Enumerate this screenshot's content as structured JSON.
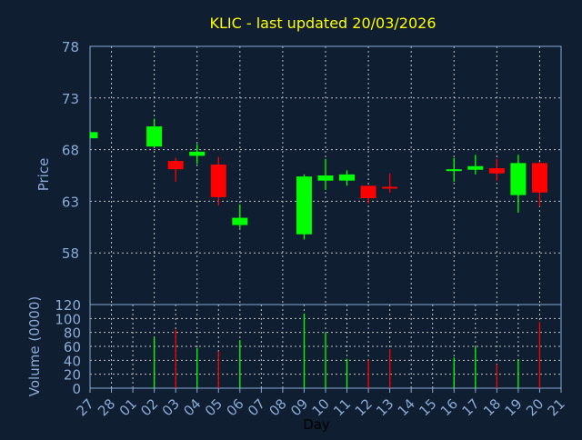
{
  "chart_data": [
    {
      "type": "candlestick",
      "title": "KLIC - last updated 20/03/2026",
      "ylabel": "Price",
      "ylim": [
        53,
        78
      ],
      "yticks": [
        78,
        73,
        68,
        63,
        58
      ],
      "grid": true,
      "categories": [
        "27",
        "28",
        "01",
        "02",
        "03",
        "04",
        "05",
        "06",
        "07",
        "08",
        "09",
        "10",
        "11",
        "12",
        "13",
        "14",
        "15",
        "16",
        "17",
        "18",
        "19",
        "20",
        "21"
      ],
      "candles": [
        {
          "day": "27",
          "open": 69.1,
          "high": 69.7,
          "low": 69.1,
          "close": 69.7
        },
        {
          "day": "02",
          "open": 68.3,
          "high": 71.0,
          "low": 68.3,
          "close": 70.25
        },
        {
          "day": "03",
          "open": 66.9,
          "high": 67.2,
          "low": 64.9,
          "close": 66.1
        },
        {
          "day": "04",
          "open": 67.4,
          "high": 68.55,
          "low": 66.6,
          "close": 67.8
        },
        {
          "day": "05",
          "open": 66.55,
          "high": 67.3,
          "low": 62.6,
          "close": 63.4
        },
        {
          "day": "06",
          "open": 60.7,
          "high": 62.7,
          "low": 60.4,
          "close": 61.4
        },
        {
          "day": "09",
          "open": 59.8,
          "high": 65.6,
          "low": 59.3,
          "close": 65.4
        },
        {
          "day": "10",
          "open": 65.0,
          "high": 67.1,
          "low": 64.1,
          "close": 65.5
        },
        {
          "day": "11",
          "open": 65.0,
          "high": 66.0,
          "low": 64.5,
          "close": 65.6
        },
        {
          "day": "12",
          "open": 64.5,
          "high": 64.5,
          "low": 62.8,
          "close": 63.3
        },
        {
          "day": "13",
          "open": 64.4,
          "high": 65.7,
          "low": 63.85,
          "close": 64.3
        },
        {
          "day": "16",
          "open": 65.96,
          "high": 67.2,
          "low": 64.9,
          "close": 66.1
        },
        {
          "day": "17",
          "open": 66.05,
          "high": 67.5,
          "low": 65.6,
          "close": 66.4
        },
        {
          "day": "18",
          "open": 66.2,
          "high": 67.1,
          "low": 65.0,
          "close": 65.7
        },
        {
          "day": "19",
          "open": 63.6,
          "high": 67.5,
          "low": 61.9,
          "close": 66.7
        },
        {
          "day": "20",
          "open": 66.7,
          "high": 66.8,
          "low": 62.5,
          "close": 63.85
        }
      ]
    },
    {
      "type": "bar",
      "xlabel": "Day",
      "ylabel": "Volume (0000)",
      "ylim": [
        0,
        120
      ],
      "yticks": [
        0,
        20,
        40,
        60,
        80,
        100,
        120
      ],
      "grid": true,
      "bars": [
        {
          "day": "02",
          "value": 73,
          "direction": "up"
        },
        {
          "day": "03",
          "value": 84,
          "direction": "down"
        },
        {
          "day": "04",
          "value": 58,
          "direction": "up"
        },
        {
          "day": "05",
          "value": 53,
          "direction": "down"
        },
        {
          "day": "06",
          "value": 69,
          "direction": "up"
        },
        {
          "day": "09",
          "value": 107,
          "direction": "up"
        },
        {
          "day": "10",
          "value": 80,
          "direction": "up"
        },
        {
          "day": "11",
          "value": 42,
          "direction": "up"
        },
        {
          "day": "12",
          "value": 41,
          "direction": "down"
        },
        {
          "day": "13",
          "value": 56,
          "direction": "down"
        },
        {
          "day": "16",
          "value": 44,
          "direction": "up"
        },
        {
          "day": "17",
          "value": 59,
          "direction": "up"
        },
        {
          "day": "18",
          "value": 34,
          "direction": "down"
        },
        {
          "day": "19",
          "value": 41,
          "direction": "up"
        },
        {
          "day": "20",
          "value": 95,
          "direction": "down"
        }
      ]
    }
  ],
  "colors": {
    "background": "#0f1e30",
    "axis": "#8aaad8",
    "text": "#8aaad8",
    "title": "#ffff00",
    "up": "#00ff00",
    "down": "#ff0000",
    "grid": "#c0c0c0"
  }
}
